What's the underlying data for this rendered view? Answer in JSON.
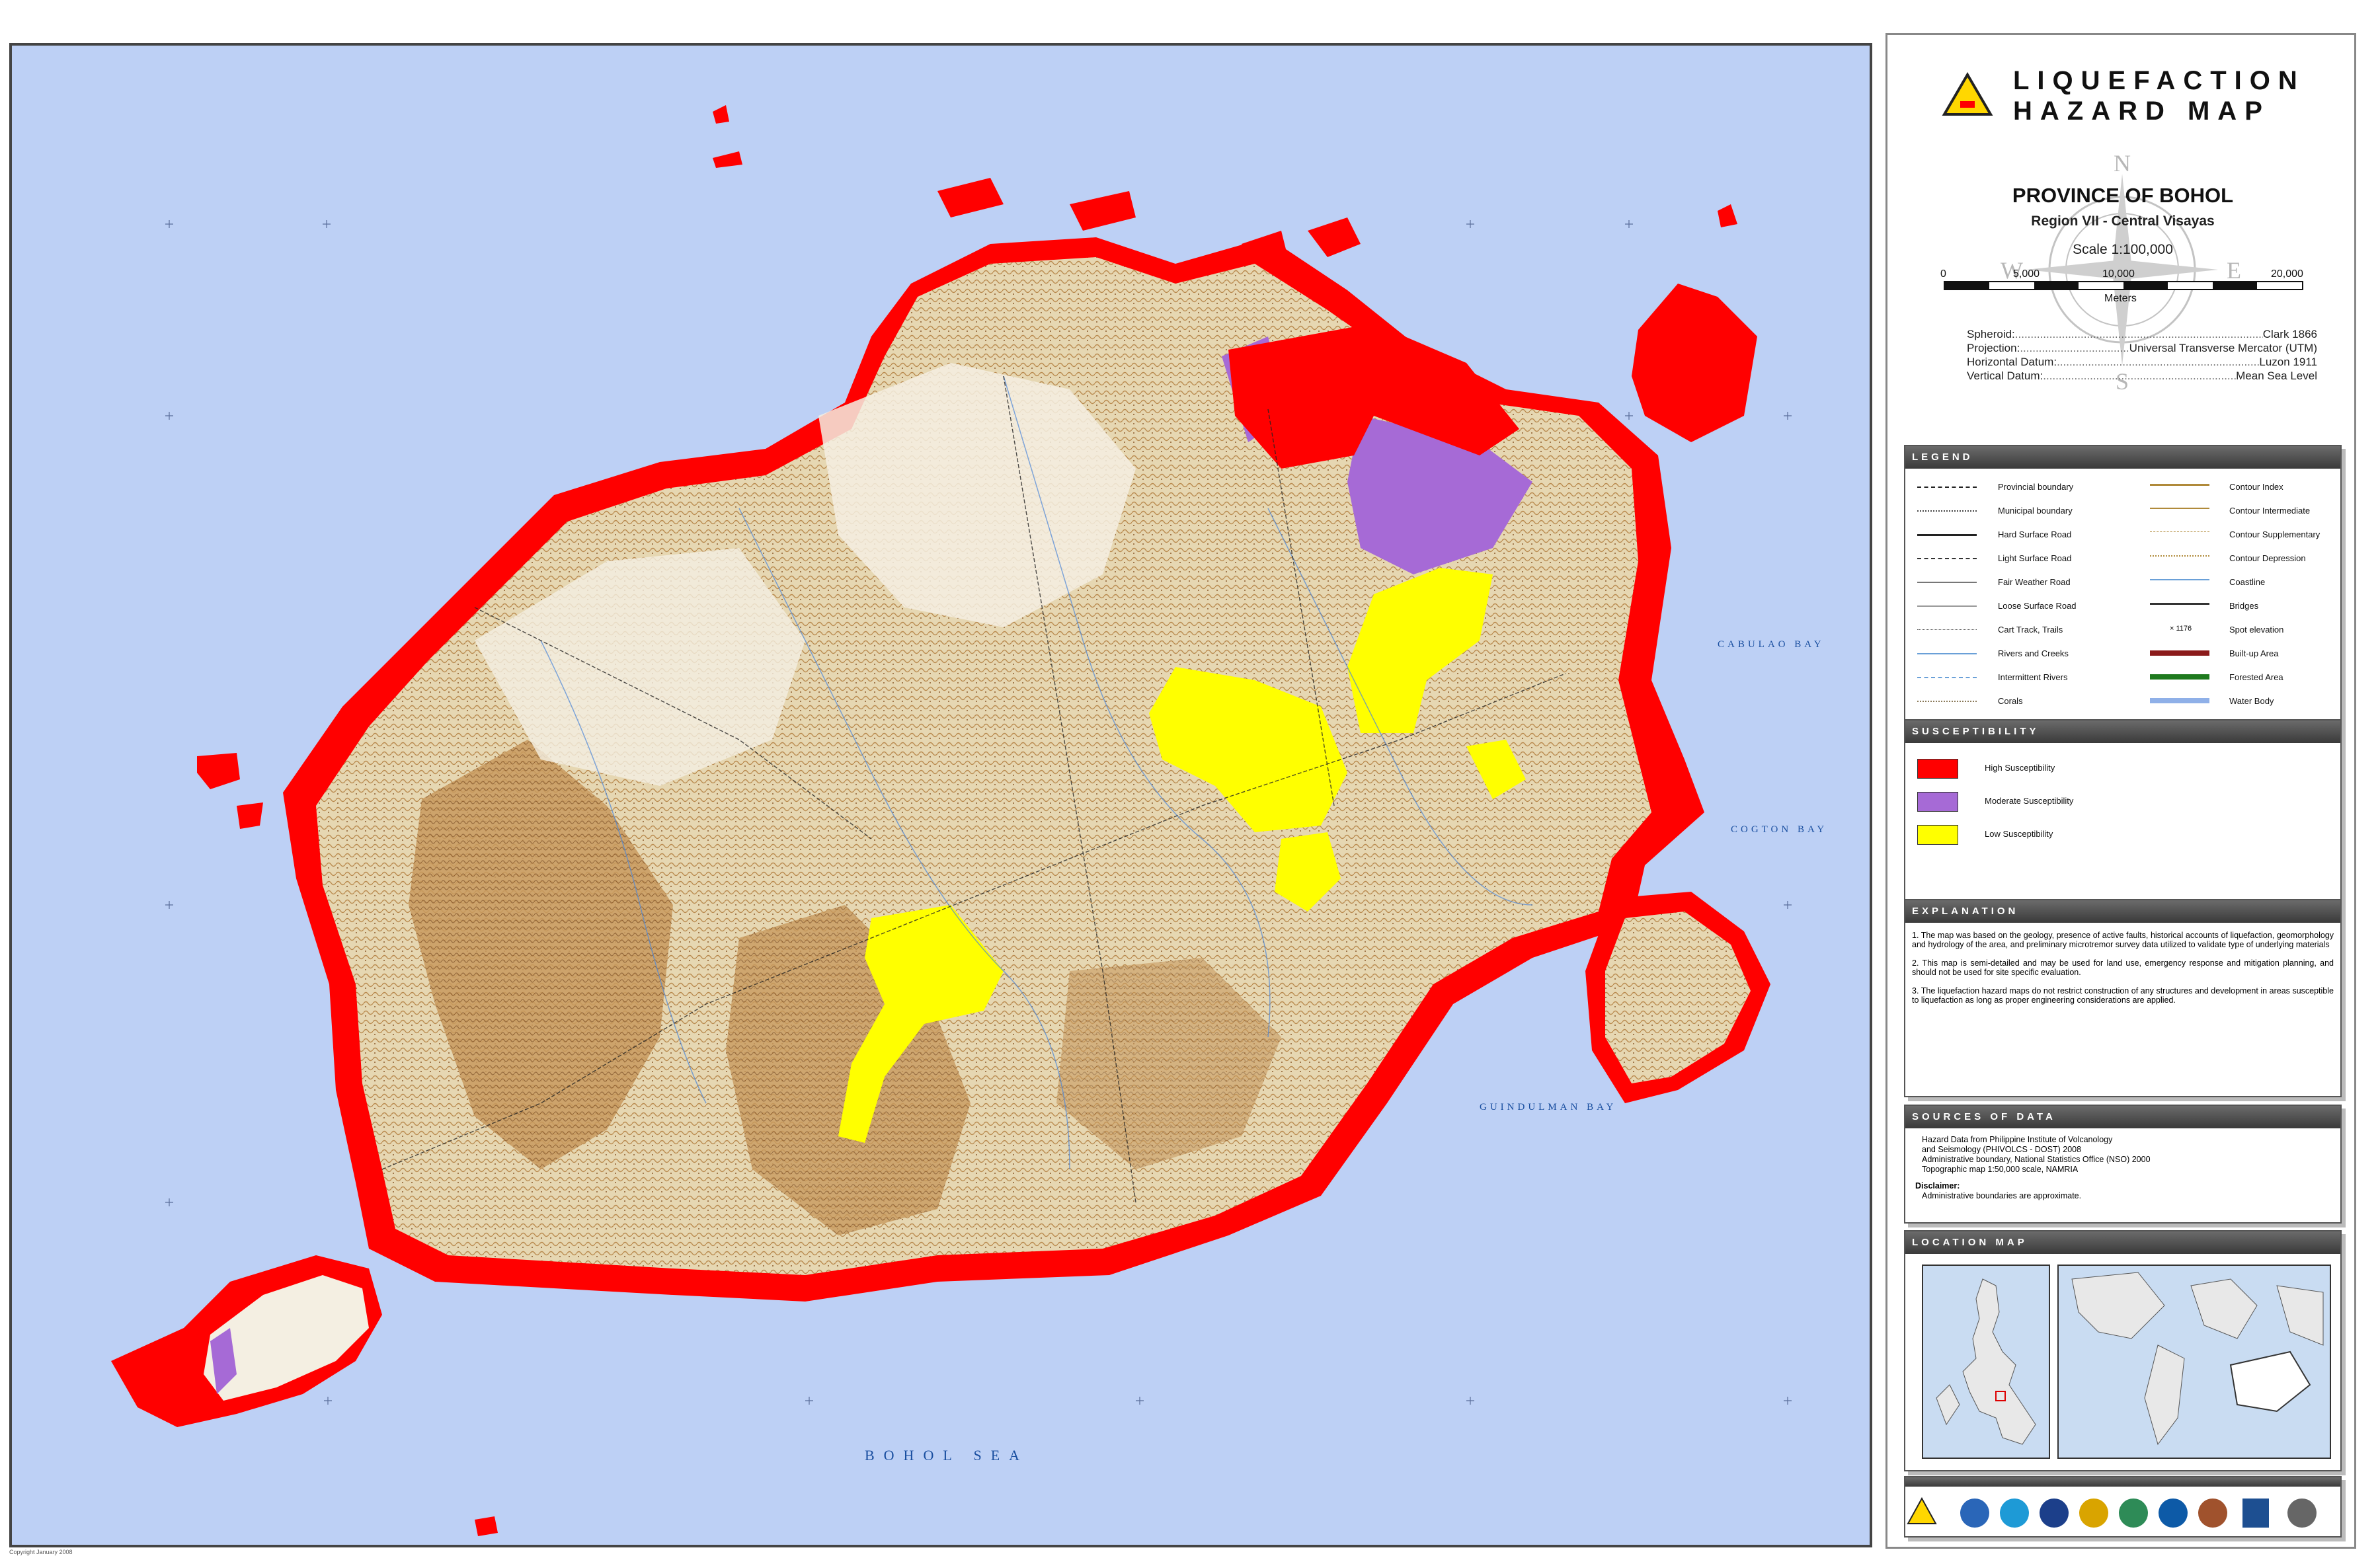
{
  "title": {
    "line1": "LIQUEFACTION",
    "line2": "HAZARD MAP"
  },
  "province": "PROVINCE OF BOHOL",
  "region": "Region VII - Central Visayas",
  "scale": {
    "text": "Scale 1:100,000",
    "ticks": [
      "0",
      "5,000",
      "10,000",
      "20,000"
    ],
    "unit": "Meters"
  },
  "compass": {
    "n": "N",
    "s": "S",
    "e": "E",
    "w": "W"
  },
  "datum": [
    {
      "label": "Spheroid:",
      "value": "Clark 1866"
    },
    {
      "label": "Projection:",
      "value": "Universal Transverse Mercator (UTM)"
    },
    {
      "label": "Horizontal Datum:",
      "value": "Luzon 1911"
    },
    {
      "label": "Vertical Datum:",
      "value": "Mean Sea Level"
    }
  ],
  "legend": {
    "header": "LEGEND",
    "left": [
      "Provincial boundary",
      "Municipal boundary",
      "Hard Surface Road",
      "Light Surface Road",
      "Fair Weather Road",
      "Loose Surface Road",
      "Cart Track, Trails",
      "Rivers and Creeks",
      "Intermittent Rivers",
      "Corals"
    ],
    "right": [
      "Contour Index",
      "Contour Intermediate",
      "Contour Supplementary",
      "Contour Depression",
      "Coastline",
      "Bridges",
      "Spot elevation",
      "Built-up Area",
      "Forested Area",
      "Water Body"
    ],
    "spot_value": "1176",
    "colors": {
      "contour": "#b08a3a",
      "coast": "#6aa0d8",
      "builtup": "#8b1a1a",
      "forest": "#1e7a1e",
      "water": "#8fb0e8"
    }
  },
  "susceptibility": {
    "header": "SUSCEPTIBILITY",
    "items": [
      {
        "label": "High Susceptibility",
        "color": "#ff0000"
      },
      {
        "label": "Moderate Susceptibility",
        "color": "#a66ad6"
      },
      {
        "label": "Low Susceptibility",
        "color": "#ffff00"
      }
    ]
  },
  "explanation": {
    "header": "EXPLANATION",
    "items": [
      "1. The map was based on the geology, presence of active faults, historical accounts of liquefaction, geomorphology and hydrology of the area, and preliminary microtremor survey data utilized to validate type of underlying materials",
      "2. This map is semi-detailed and may be used for land use, emergency response and mitigation planning, and should not be used for site specific evaluation.",
      "3. The liquefaction hazard maps do not restrict construction of any structures and development in areas susceptible to liquefaction as long as proper engineering considerations are applied."
    ]
  },
  "sources": {
    "header": "SOURCES OF DATA",
    "lines": [
      "Hazard Data from Philippine Institute of Volcanology",
      "and Seismology (PHIVOLCS - DOST) 2008",
      "Administrative boundary, National Statistics Office (NSO) 2000",
      "Topographic map 1:50,000 scale, NAMRIA"
    ],
    "disclaimer_label": "Disclaimer:",
    "disclaimer": "Administrative boundaries are approximate."
  },
  "location_map": {
    "header": "LOCATION MAP"
  },
  "map": {
    "water_labels": [
      "CABULAO BAY",
      "COGTON BAY",
      "GUINDULMAN BAY",
      "BOHOL SEA"
    ],
    "colors": {
      "sea": "#bdd0f5",
      "land": "#ece3cc",
      "relief": "#b98a4e",
      "high": "#ff0000",
      "moderate": "#a66ad6",
      "low": "#ffff00"
    }
  },
  "copyright": "Copyright January 2008"
}
